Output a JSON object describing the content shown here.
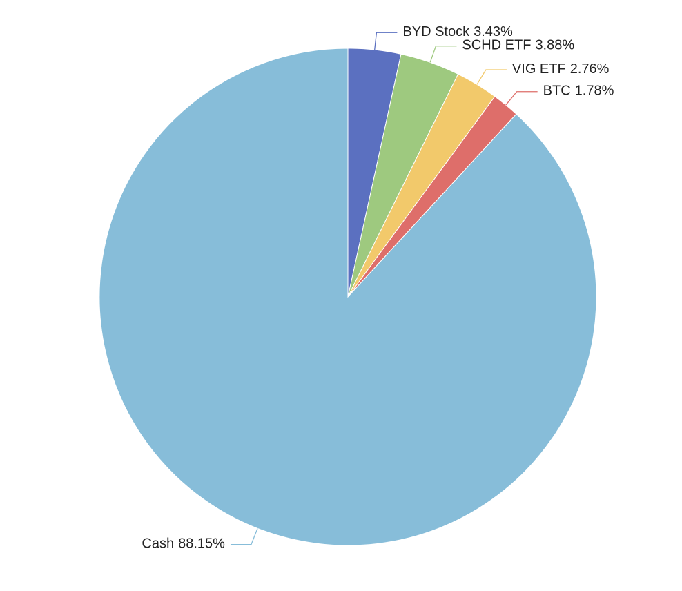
{
  "chart_data": {
    "type": "pie",
    "categories": [
      "BYD Stock",
      "SCHD ETF",
      "VIG ETF",
      "BTC",
      "Cash"
    ],
    "values": [
      3.43,
      3.88,
      2.76,
      1.78,
      88.15
    ],
    "value_labels": [
      "3.43%",
      "3.88%",
      "2.76%",
      "1.78%",
      "88.15%"
    ],
    "colors": [
      "#5b70c0",
      "#9ec97f",
      "#f2c96b",
      "#de6e6a",
      "#87bdd9"
    ]
  }
}
